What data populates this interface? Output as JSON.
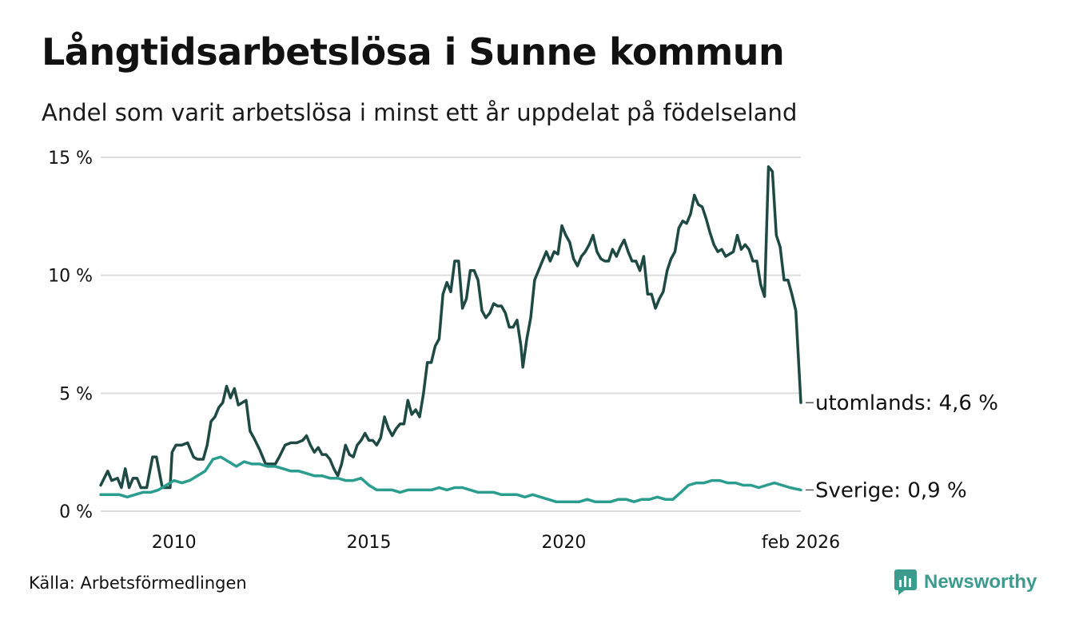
{
  "title": "Långtidsarbetslösa i Sunne kommun",
  "subtitle": "Andel som varit arbetslösa i minst ett år uppdelat på födelseland",
  "source": "Källa: Arbetsförmedlingen",
  "brand": {
    "name": "Newsworthy",
    "icon": "newsworthy-logo-icon",
    "color": "#3b9b8c"
  },
  "chart_data": {
    "type": "line",
    "title": "Långtidsarbetslösa i Sunne kommun",
    "xlabel": "",
    "ylabel": "",
    "ylim": [
      0,
      15
    ],
    "xlim": [
      2008.12,
      2026.08
    ],
    "yticks": [
      0,
      5,
      10,
      15
    ],
    "ytick_labels": [
      "0 %",
      "5 %",
      "10 %",
      "15 %"
    ],
    "xticks": [
      2010,
      2015,
      2020,
      2026.08
    ],
    "xtick_labels": [
      "2010",
      "2015",
      "2020",
      "feb 2026"
    ],
    "grid": true,
    "legend": "end-of-line labels",
    "series": [
      {
        "name": "utomlands",
        "end_label": "utomlands: 4,6 %",
        "color": "#1e4a43",
        "points": [
          [
            2008.12,
            1.1
          ],
          [
            2008.3,
            1.7
          ],
          [
            2008.4,
            1.3
          ],
          [
            2008.55,
            1.4
          ],
          [
            2008.65,
            1.0
          ],
          [
            2008.75,
            1.8
          ],
          [
            2008.85,
            1.0
          ],
          [
            2008.95,
            1.4
          ],
          [
            2009.05,
            1.4
          ],
          [
            2009.15,
            1.0
          ],
          [
            2009.3,
            1.0
          ],
          [
            2009.45,
            2.3
          ],
          [
            2009.55,
            2.3
          ],
          [
            2009.7,
            1.0
          ],
          [
            2009.9,
            1.0
          ],
          [
            2009.95,
            2.5
          ],
          [
            2010.05,
            2.8
          ],
          [
            2010.2,
            2.8
          ],
          [
            2010.35,
            2.9
          ],
          [
            2010.5,
            2.3
          ],
          [
            2010.6,
            2.2
          ],
          [
            2010.75,
            2.2
          ],
          [
            2010.85,
            2.8
          ],
          [
            2010.95,
            3.8
          ],
          [
            2011.05,
            4.0
          ],
          [
            2011.15,
            4.4
          ],
          [
            2011.25,
            4.6
          ],
          [
            2011.35,
            5.3
          ],
          [
            2011.45,
            4.8
          ],
          [
            2011.55,
            5.2
          ],
          [
            2011.65,
            4.5
          ],
          [
            2011.75,
            4.6
          ],
          [
            2011.85,
            4.7
          ],
          [
            2011.95,
            3.4
          ],
          [
            2012.05,
            3.1
          ],
          [
            2012.2,
            2.6
          ],
          [
            2012.35,
            2.0
          ],
          [
            2012.5,
            2.0
          ],
          [
            2012.6,
            2.0
          ],
          [
            2012.7,
            2.3
          ],
          [
            2012.85,
            2.8
          ],
          [
            2013.0,
            2.9
          ],
          [
            2013.15,
            2.9
          ],
          [
            2013.3,
            3.0
          ],
          [
            2013.4,
            3.2
          ],
          [
            2013.5,
            2.8
          ],
          [
            2013.6,
            2.5
          ],
          [
            2013.7,
            2.7
          ],
          [
            2013.8,
            2.4
          ],
          [
            2013.9,
            2.4
          ],
          [
            2014.0,
            2.2
          ],
          [
            2014.1,
            1.8
          ],
          [
            2014.2,
            1.5
          ],
          [
            2014.3,
            2.0
          ],
          [
            2014.4,
            2.8
          ],
          [
            2014.5,
            2.4
          ],
          [
            2014.6,
            2.3
          ],
          [
            2014.7,
            2.8
          ],
          [
            2014.8,
            3.0
          ],
          [
            2014.9,
            3.3
          ],
          [
            2015.0,
            3.0
          ],
          [
            2015.1,
            3.0
          ],
          [
            2015.2,
            2.8
          ],
          [
            2015.3,
            3.1
          ],
          [
            2015.4,
            4.0
          ],
          [
            2015.5,
            3.5
          ],
          [
            2015.6,
            3.2
          ],
          [
            2015.7,
            3.5
          ],
          [
            2015.8,
            3.7
          ],
          [
            2015.9,
            3.7
          ],
          [
            2016.0,
            4.7
          ],
          [
            2016.1,
            4.1
          ],
          [
            2016.2,
            4.3
          ],
          [
            2016.3,
            4.0
          ],
          [
            2016.4,
            5.0
          ],
          [
            2016.5,
            6.3
          ],
          [
            2016.6,
            6.3
          ],
          [
            2016.7,
            7.0
          ],
          [
            2016.8,
            7.3
          ],
          [
            2016.9,
            9.2
          ],
          [
            2017.0,
            9.7
          ],
          [
            2017.1,
            9.3
          ],
          [
            2017.2,
            10.6
          ],
          [
            2017.3,
            10.6
          ],
          [
            2017.4,
            8.6
          ],
          [
            2017.5,
            9.0
          ],
          [
            2017.6,
            10.2
          ],
          [
            2017.7,
            10.2
          ],
          [
            2017.8,
            9.8
          ],
          [
            2017.9,
            8.5
          ],
          [
            2018.0,
            8.2
          ],
          [
            2018.1,
            8.4
          ],
          [
            2018.2,
            8.8
          ],
          [
            2018.3,
            8.7
          ],
          [
            2018.4,
            8.7
          ],
          [
            2018.5,
            8.4
          ],
          [
            2018.6,
            7.8
          ],
          [
            2018.7,
            7.8
          ],
          [
            2018.8,
            8.1
          ],
          [
            2018.9,
            7.0
          ],
          [
            2018.95,
            6.1
          ],
          [
            2019.05,
            7.3
          ],
          [
            2019.15,
            8.2
          ],
          [
            2019.25,
            9.8
          ],
          [
            2019.35,
            10.2
          ],
          [
            2019.45,
            10.6
          ],
          [
            2019.55,
            11.0
          ],
          [
            2019.65,
            10.6
          ],
          [
            2019.75,
            11.0
          ],
          [
            2019.85,
            10.9
          ],
          [
            2019.95,
            12.1
          ],
          [
            2020.05,
            11.7
          ],
          [
            2020.15,
            11.4
          ],
          [
            2020.25,
            10.7
          ],
          [
            2020.35,
            10.4
          ],
          [
            2020.45,
            10.8
          ],
          [
            2020.55,
            11.0
          ],
          [
            2020.65,
            11.3
          ],
          [
            2020.75,
            11.7
          ],
          [
            2020.85,
            11.0
          ],
          [
            2020.95,
            10.7
          ],
          [
            2021.05,
            10.6
          ],
          [
            2021.15,
            10.6
          ],
          [
            2021.25,
            11.1
          ],
          [
            2021.35,
            10.8
          ],
          [
            2021.45,
            11.2
          ],
          [
            2021.55,
            11.5
          ],
          [
            2021.65,
            11.0
          ],
          [
            2021.75,
            10.6
          ],
          [
            2021.85,
            10.6
          ],
          [
            2021.95,
            10.2
          ],
          [
            2022.05,
            10.8
          ],
          [
            2022.15,
            9.2
          ],
          [
            2022.25,
            9.2
          ],
          [
            2022.35,
            8.6
          ],
          [
            2022.45,
            9.0
          ],
          [
            2022.55,
            9.3
          ],
          [
            2022.65,
            10.2
          ],
          [
            2022.75,
            10.7
          ],
          [
            2022.85,
            11.0
          ],
          [
            2022.95,
            12.0
          ],
          [
            2023.05,
            12.3
          ],
          [
            2023.15,
            12.2
          ],
          [
            2023.25,
            12.6
          ],
          [
            2023.35,
            13.4
          ],
          [
            2023.45,
            13.0
          ],
          [
            2023.55,
            12.9
          ],
          [
            2023.65,
            12.4
          ],
          [
            2023.75,
            11.8
          ],
          [
            2023.85,
            11.3
          ],
          [
            2023.95,
            11.0
          ],
          [
            2024.05,
            11.1
          ],
          [
            2024.15,
            10.8
          ],
          [
            2024.25,
            10.9
          ],
          [
            2024.35,
            11.0
          ],
          [
            2024.45,
            11.7
          ],
          [
            2024.55,
            11.1
          ],
          [
            2024.65,
            11.3
          ],
          [
            2024.75,
            11.1
          ],
          [
            2024.85,
            10.6
          ],
          [
            2024.95,
            10.6
          ],
          [
            2025.05,
            9.6
          ],
          [
            2025.15,
            9.1
          ],
          [
            2025.25,
            14.6
          ],
          [
            2025.35,
            14.4
          ],
          [
            2025.45,
            11.7
          ],
          [
            2025.55,
            11.2
          ],
          [
            2025.65,
            9.8
          ],
          [
            2025.75,
            9.8
          ],
          [
            2025.85,
            9.2
          ],
          [
            2025.95,
            8.5
          ],
          [
            2026.08,
            4.6
          ]
        ]
      },
      {
        "name": "Sverige",
        "end_label": "Sverige: 0,9 %",
        "color": "#2a9d8f",
        "points": [
          [
            2008.12,
            0.7
          ],
          [
            2008.4,
            0.7
          ],
          [
            2008.6,
            0.7
          ],
          [
            2008.8,
            0.6
          ],
          [
            2009.0,
            0.7
          ],
          [
            2009.2,
            0.8
          ],
          [
            2009.4,
            0.8
          ],
          [
            2009.6,
            0.9
          ],
          [
            2009.8,
            1.1
          ],
          [
            2010.0,
            1.3
          ],
          [
            2010.2,
            1.2
          ],
          [
            2010.4,
            1.3
          ],
          [
            2010.6,
            1.5
          ],
          [
            2010.8,
            1.7
          ],
          [
            2011.0,
            2.2
          ],
          [
            2011.2,
            2.3
          ],
          [
            2011.4,
            2.1
          ],
          [
            2011.6,
            1.9
          ],
          [
            2011.8,
            2.1
          ],
          [
            2012.0,
            2.0
          ],
          [
            2012.2,
            2.0
          ],
          [
            2012.4,
            1.9
          ],
          [
            2012.6,
            1.9
          ],
          [
            2012.8,
            1.8
          ],
          [
            2013.0,
            1.7
          ],
          [
            2013.2,
            1.7
          ],
          [
            2013.4,
            1.6
          ],
          [
            2013.6,
            1.5
          ],
          [
            2013.8,
            1.5
          ],
          [
            2014.0,
            1.4
          ],
          [
            2014.2,
            1.4
          ],
          [
            2014.4,
            1.3
          ],
          [
            2014.6,
            1.3
          ],
          [
            2014.8,
            1.4
          ],
          [
            2015.0,
            1.1
          ],
          [
            2015.2,
            0.9
          ],
          [
            2015.4,
            0.9
          ],
          [
            2015.6,
            0.9
          ],
          [
            2015.8,
            0.8
          ],
          [
            2016.0,
            0.9
          ],
          [
            2016.2,
            0.9
          ],
          [
            2016.4,
            0.9
          ],
          [
            2016.6,
            0.9
          ],
          [
            2016.8,
            1.0
          ],
          [
            2017.0,
            0.9
          ],
          [
            2017.2,
            1.0
          ],
          [
            2017.4,
            1.0
          ],
          [
            2017.6,
            0.9
          ],
          [
            2017.8,
            0.8
          ],
          [
            2018.0,
            0.8
          ],
          [
            2018.2,
            0.8
          ],
          [
            2018.4,
            0.7
          ],
          [
            2018.6,
            0.7
          ],
          [
            2018.8,
            0.7
          ],
          [
            2019.0,
            0.6
          ],
          [
            2019.2,
            0.7
          ],
          [
            2019.4,
            0.6
          ],
          [
            2019.6,
            0.5
          ],
          [
            2019.8,
            0.4
          ],
          [
            2020.0,
            0.4
          ],
          [
            2020.2,
            0.4
          ],
          [
            2020.4,
            0.4
          ],
          [
            2020.6,
            0.5
          ],
          [
            2020.8,
            0.4
          ],
          [
            2021.0,
            0.4
          ],
          [
            2021.2,
            0.4
          ],
          [
            2021.4,
            0.5
          ],
          [
            2021.6,
            0.5
          ],
          [
            2021.8,
            0.4
          ],
          [
            2022.0,
            0.5
          ],
          [
            2022.2,
            0.5
          ],
          [
            2022.4,
            0.6
          ],
          [
            2022.6,
            0.5
          ],
          [
            2022.8,
            0.5
          ],
          [
            2023.0,
            0.8
          ],
          [
            2023.2,
            1.1
          ],
          [
            2023.4,
            1.2
          ],
          [
            2023.6,
            1.2
          ],
          [
            2023.8,
            1.3
          ],
          [
            2024.0,
            1.3
          ],
          [
            2024.2,
            1.2
          ],
          [
            2024.4,
            1.2
          ],
          [
            2024.6,
            1.1
          ],
          [
            2024.8,
            1.1
          ],
          [
            2025.0,
            1.0
          ],
          [
            2025.2,
            1.1
          ],
          [
            2025.4,
            1.2
          ],
          [
            2025.6,
            1.1
          ],
          [
            2025.8,
            1.0
          ],
          [
            2026.08,
            0.9
          ]
        ]
      }
    ]
  }
}
